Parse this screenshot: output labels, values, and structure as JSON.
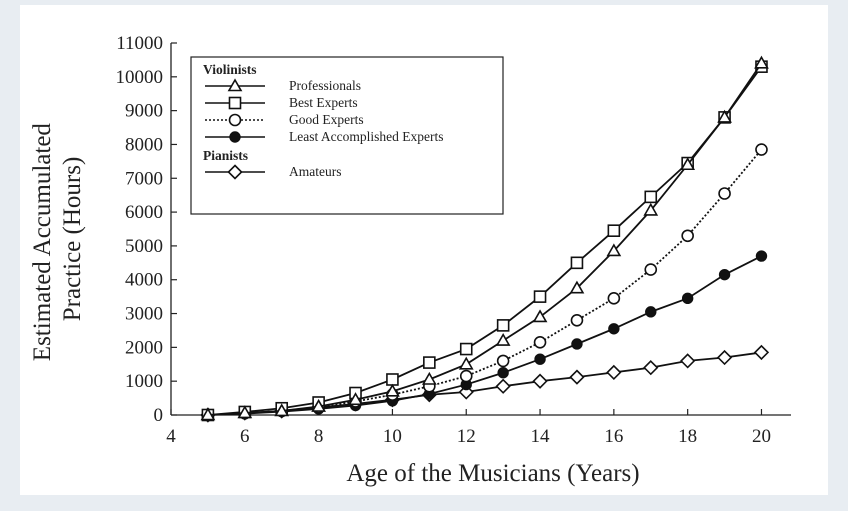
{
  "chart_data": {
    "type": "line",
    "xlabel": "Age of the Musicians (Years)",
    "ylabel": [
      "Estimated Accumulated",
      "Practice (Hours)"
    ],
    "xlim": [
      4,
      20.8
    ],
    "ylim": [
      0,
      11000
    ],
    "xticks": [
      4,
      6,
      8,
      10,
      12,
      14,
      16,
      18,
      20
    ],
    "yticks": [
      0,
      1000,
      2000,
      3000,
      4000,
      5000,
      6000,
      7000,
      8000,
      9000,
      10000,
      11000
    ],
    "grid": false,
    "legend_position": "top-left",
    "legend_groups": [
      {
        "title": "Violinists",
        "entries": [
          "Professionals",
          "Best Experts",
          "Good Experts",
          "Least Accomplished Experts"
        ]
      },
      {
        "title": "Pianists",
        "entries": [
          "Amateurs"
        ]
      }
    ],
    "x": [
      5,
      6,
      7,
      8,
      9,
      10,
      11,
      12,
      13,
      14,
      15,
      16,
      17,
      18,
      19,
      20
    ],
    "series": [
      {
        "name": "Professionals",
        "group": "Violinists",
        "marker": "triangle",
        "line": "solid",
        "values": [
          0,
          60,
          120,
          250,
          450,
          700,
          1050,
          1500,
          2200,
          2900,
          3750,
          4850,
          6050,
          7400,
          8800,
          10400
        ]
      },
      {
        "name": "Best Experts",
        "group": "Violinists",
        "marker": "square",
        "line": "solid",
        "values": [
          0,
          90,
          200,
          370,
          650,
          1050,
          1550,
          1950,
          2650,
          3500,
          4500,
          5450,
          6450,
          7450,
          8800,
          10300
        ]
      },
      {
        "name": "Good Experts",
        "group": "Violinists",
        "marker": "circle-open",
        "line": "dotted",
        "values": [
          0,
          50,
          120,
          230,
          400,
          600,
          850,
          1150,
          1600,
          2150,
          2800,
          3450,
          4300,
          5300,
          6550,
          7850
        ]
      },
      {
        "name": "Least Accomplished Experts",
        "group": "Violinists",
        "marker": "circle-filled",
        "line": "solid",
        "values": [
          0,
          40,
          100,
          180,
          280,
          420,
          620,
          900,
          1250,
          1650,
          2100,
          2550,
          3050,
          3450,
          4150,
          4700
        ]
      },
      {
        "name": "Amateurs",
        "group": "Pianists",
        "marker": "diamond",
        "line": "solid",
        "values": [
          0,
          60,
          120,
          220,
          330,
          450,
          600,
          680,
          850,
          1000,
          1120,
          1260,
          1400,
          1600,
          1700,
          1850
        ]
      }
    ]
  }
}
